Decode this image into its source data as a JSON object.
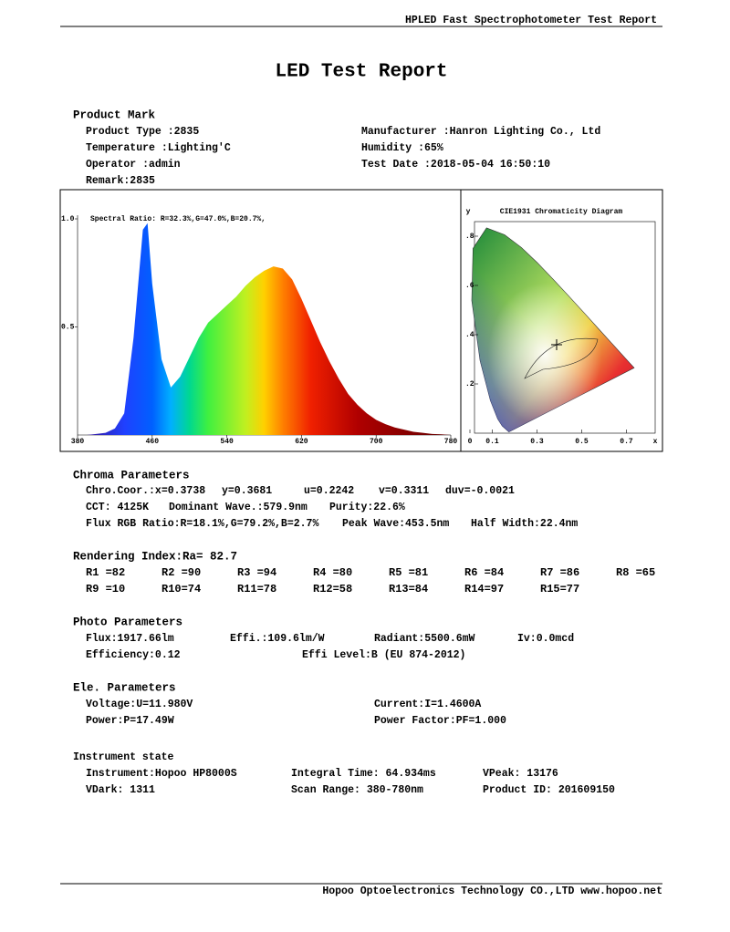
{
  "header": "HPLED Fast Spectrophotometer Test Report",
  "title": "LED Test Report",
  "product_mark": {
    "heading": "Product Mark",
    "left": [
      "Product Type :2835",
      "Temperature :Lighting'C",
      "Operator :admin"
    ],
    "right": [
      "Manufacturer :Hanron Lighting Co., Ltd",
      "Humidity :65%",
      "Test Date :2018-05-04 16:50:10"
    ],
    "remark": "Remark:2835"
  },
  "spectrum": {
    "label": "Spectral Ratio:  R=32.3%,G=47.0%,B=20.7%,",
    "x": [
      380,
      390,
      400,
      410,
      420,
      430,
      440,
      450,
      455,
      460,
      470,
      480,
      490,
      500,
      510,
      520,
      530,
      540,
      550,
      560,
      570,
      580,
      590,
      600,
      610,
      620,
      630,
      640,
      650,
      660,
      670,
      680,
      690,
      700,
      710,
      720,
      730,
      740,
      750,
      760,
      770,
      780
    ],
    "values": [
      0,
      0,
      0.005,
      0.01,
      0.03,
      0.1,
      0.45,
      0.95,
      0.98,
      0.7,
      0.35,
      0.22,
      0.27,
      0.36,
      0.45,
      0.52,
      0.56,
      0.6,
      0.64,
      0.69,
      0.73,
      0.76,
      0.78,
      0.77,
      0.72,
      0.63,
      0.53,
      0.43,
      0.34,
      0.26,
      0.19,
      0.14,
      0.1,
      0.07,
      0.05,
      0.035,
      0.025,
      0.015,
      0.01,
      0.005,
      0.003,
      0
    ],
    "xlim": [
      380,
      780
    ],
    "ylim": [
      0,
      1
    ],
    "xticks": [
      380,
      460,
      540,
      620,
      700,
      780
    ],
    "yticks": [
      {
        "value": 1,
        "label": "1.0"
      },
      0.5
    ]
  },
  "cie": {
    "title": "CIE1931 Chromaticity Diagram",
    "xlabel": "x",
    "ylabel": "y",
    "xticks": [
      0,
      0.1,
      0.3,
      0.5,
      0.7
    ],
    "yticks": [
      {
        "value": 0.8,
        "label": ".8"
      },
      {
        "value": 0.6,
        "label": ".6"
      },
      {
        "value": 0.4,
        "label": ".4"
      },
      {
        "value": 0.2,
        "label": ".2"
      }
    ]
  },
  "chroma": {
    "heading": "Chroma Parameters",
    "rows": [
      [
        "Chro.Coor.:x=0.3738",
        "y=0.3681",
        "u=0.2242",
        "v=0.3311",
        "duv=-0.0021"
      ],
      [
        "CCT: 4125K",
        "Dominant Wave.:579.9nm",
        "Purity:22.6%"
      ],
      [
        "Flux RGB Ratio:R=18.1%,G=79.2%,B=2.7%",
        "Peak Wave:453.5nm",
        "Half Width:22.4nm"
      ]
    ]
  },
  "rendering": {
    "heading": "Rendering Index:Ra= 82.7",
    "rows": [
      [
        "R1 =82",
        "R2 =90",
        "R3 =94",
        "R4 =80",
        "R5 =81",
        "R6 =84",
        "R7 =86",
        "R8 =65"
      ],
      [
        "R9 =10",
        "R10=74",
        "R11=78",
        "R12=58",
        "R13=84",
        "R14=97",
        "R15=77"
      ]
    ]
  },
  "photo": {
    "heading": "Photo Parameters",
    "rows": [
      [
        "Flux:1917.66lm",
        "Effi.:109.6lm/W",
        "Radiant:5500.6mW",
        "Iv:0.0mcd"
      ],
      [
        "Efficiency:0.12",
        "Effi Level:B (EU 874-2012)"
      ]
    ]
  },
  "electrical": {
    "heading": "Ele. Parameters",
    "rows": [
      [
        "Voltage:U=11.980V",
        "Current:I=1.4600A"
      ],
      [
        "Power:P=17.49W",
        "Power Factor:PF=1.000"
      ]
    ]
  },
  "instrument": {
    "heading": "Instrument state",
    "rows": [
      [
        "Instrument:Hopoo HP8000S",
        "Integral Time: 64.934ms",
        "VPeak: 13176"
      ],
      [
        "VDark: 1311",
        "Scan Range: 380-780nm",
        "Product ID: 201609150"
      ]
    ]
  },
  "footer": "Hopoo Optoelectronics Technology CO.,LTD  www.hopoo.net"
}
